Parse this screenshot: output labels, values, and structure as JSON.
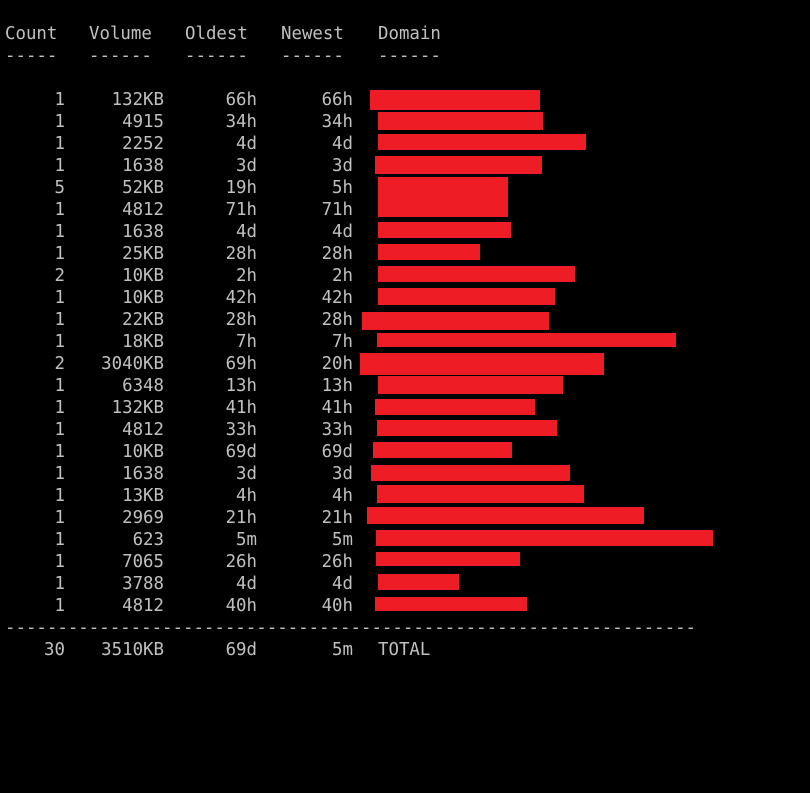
{
  "headers": {
    "count": "Count",
    "volume": "Volume",
    "oldest": "Oldest",
    "newest": "Newest",
    "domain": "Domain"
  },
  "header_dashes": {
    "count": "-----",
    "volume": "------",
    "oldest": "------",
    "newest": "------",
    "domain": "------"
  },
  "rows": [
    {
      "count": "1",
      "volume": "132KB",
      "oldest": "66h",
      "newest": "66h",
      "domain": "",
      "redacted": true
    },
    {
      "count": "1",
      "volume": "4915",
      "oldest": "34h",
      "newest": "34h",
      "domain": "",
      "redacted": true
    },
    {
      "count": "1",
      "volume": "2252",
      "oldest": "4d",
      "newest": "4d",
      "domain": "",
      "redacted": true
    },
    {
      "count": "1",
      "volume": "1638",
      "oldest": "3d",
      "newest": "3d",
      "domain": "",
      "redacted": true
    },
    {
      "count": "5",
      "volume": "52KB",
      "oldest": "19h",
      "newest": "5h",
      "domain": "",
      "redacted": true
    },
    {
      "count": "1",
      "volume": "4812",
      "oldest": "71h",
      "newest": "71h",
      "domain": "",
      "redacted": true
    },
    {
      "count": "1",
      "volume": "1638",
      "oldest": "4d",
      "newest": "4d",
      "domain": "",
      "redacted": true
    },
    {
      "count": "1",
      "volume": "25KB",
      "oldest": "28h",
      "newest": "28h",
      "domain": "",
      "redacted": true
    },
    {
      "count": "2",
      "volume": "10KB",
      "oldest": "2h",
      "newest": "2h",
      "domain": "",
      "redacted": true
    },
    {
      "count": "1",
      "volume": "10KB",
      "oldest": "42h",
      "newest": "42h",
      "domain": "",
      "redacted": true
    },
    {
      "count": "1",
      "volume": "22KB",
      "oldest": "28h",
      "newest": "28h",
      "domain": "",
      "redacted": true
    },
    {
      "count": "1",
      "volume": "18KB",
      "oldest": "7h",
      "newest": "7h",
      "domain": "",
      "redacted": true
    },
    {
      "count": "2",
      "volume": "3040KB",
      "oldest": "69h",
      "newest": "20h",
      "domain": "",
      "redacted": true
    },
    {
      "count": "1",
      "volume": "6348",
      "oldest": "13h",
      "newest": "13h",
      "domain": "",
      "redacted": true
    },
    {
      "count": "1",
      "volume": "132KB",
      "oldest": "41h",
      "newest": "41h",
      "domain": "",
      "redacted": true
    },
    {
      "count": "1",
      "volume": "4812",
      "oldest": "33h",
      "newest": "33h",
      "domain": "",
      "redacted": true
    },
    {
      "count": "1",
      "volume": "10KB",
      "oldest": "69d",
      "newest": "69d",
      "domain": "",
      "redacted": true
    },
    {
      "count": "1",
      "volume": "1638",
      "oldest": "3d",
      "newest": "3d",
      "domain": "",
      "redacted": true
    },
    {
      "count": "1",
      "volume": "13KB",
      "oldest": "4h",
      "newest": "4h",
      "domain": "",
      "redacted": true
    },
    {
      "count": "1",
      "volume": "2969",
      "oldest": "21h",
      "newest": "21h",
      "domain": "",
      "redacted": true
    },
    {
      "count": "1",
      "volume": "623",
      "oldest": "5m",
      "newest": "5m",
      "domain": "",
      "redacted": true
    },
    {
      "count": "1",
      "volume": "7065",
      "oldest": "26h",
      "newest": "26h",
      "domain": "",
      "redacted": true
    },
    {
      "count": "1",
      "volume": "3788",
      "oldest": "4d",
      "newest": "4d",
      "domain": "",
      "redacted": true
    },
    {
      "count": "1",
      "volume": "4812",
      "oldest": "40h",
      "newest": "40h",
      "domain": "",
      "redacted": true
    }
  ],
  "separator": "------------------------------------------------------------------",
  "total": {
    "count": "30",
    "volume": "3510KB",
    "oldest": "69d",
    "newest": "5m",
    "label": "TOTAL"
  },
  "colors": {
    "background": "#000000",
    "text": "#c0c0c0",
    "redaction": "#ee1c25"
  }
}
